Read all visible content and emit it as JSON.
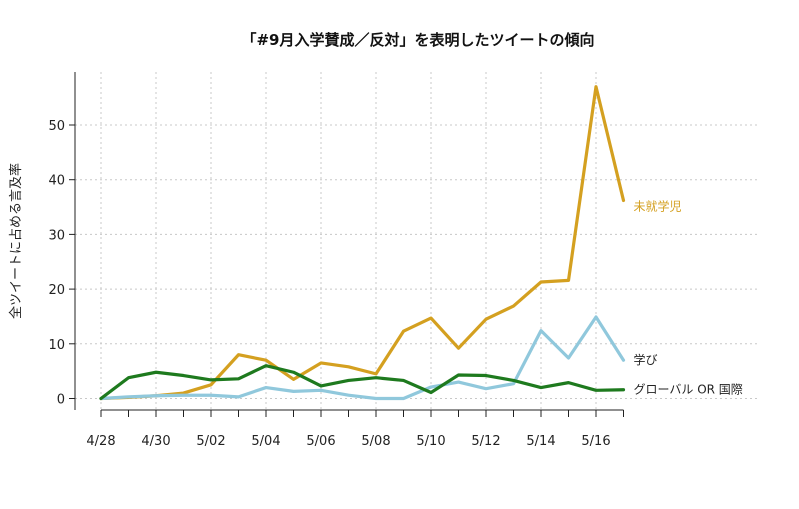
{
  "chart_data": {
    "type": "line",
    "title": "「#9月入学賛成／反対」を表明したツイートの傾向",
    "xlabel": "",
    "ylabel": "全ツイートに占める言及率",
    "x": [
      "4/28",
      "4/29",
      "4/30",
      "5/01",
      "5/02",
      "5/03",
      "5/04",
      "5/05",
      "5/06",
      "5/07",
      "5/08",
      "5/09",
      "5/10",
      "5/11",
      "5/12",
      "5/13",
      "5/14",
      "5/15",
      "5/16",
      "5/17"
    ],
    "xtick_labels": [
      "4/28",
      "4/30",
      "5/02",
      "5/04",
      "5/06",
      "5/08",
      "5/10",
      "5/12",
      "5/14",
      "5/16"
    ],
    "yticks": [
      0,
      10,
      20,
      30,
      40,
      50
    ],
    "ylim": [
      -2,
      60
    ],
    "grid": true,
    "series": [
      {
        "name": "未就学児",
        "color": "#d4a020",
        "values": [
          0,
          0.2,
          0.5,
          1,
          2.5,
          8,
          7,
          3.5,
          6.5,
          5.8,
          4.5,
          12.3,
          14.7,
          9.2,
          14.5,
          16.9,
          21.3,
          21.6,
          57,
          36.2
        ]
      },
      {
        "name": "学び",
        "color": "#90c8dc",
        "values": [
          0,
          0.3,
          0.5,
          0.6,
          0.6,
          0.3,
          2,
          1.3,
          1.5,
          0.6,
          0,
          0,
          2.1,
          3,
          1.8,
          2.7,
          12.4,
          7.4,
          14.9,
          7
        ]
      },
      {
        "name": "グローバル OR 国際",
        "color": "#1e7a1e",
        "values": [
          0,
          3.8,
          4.8,
          4.2,
          3.4,
          3.6,
          6,
          4.8,
          2.3,
          3.3,
          3.8,
          3.3,
          1.1,
          4.3,
          4.2,
          3.3,
          2,
          2.9,
          1.5,
          1.6
        ]
      }
    ]
  }
}
